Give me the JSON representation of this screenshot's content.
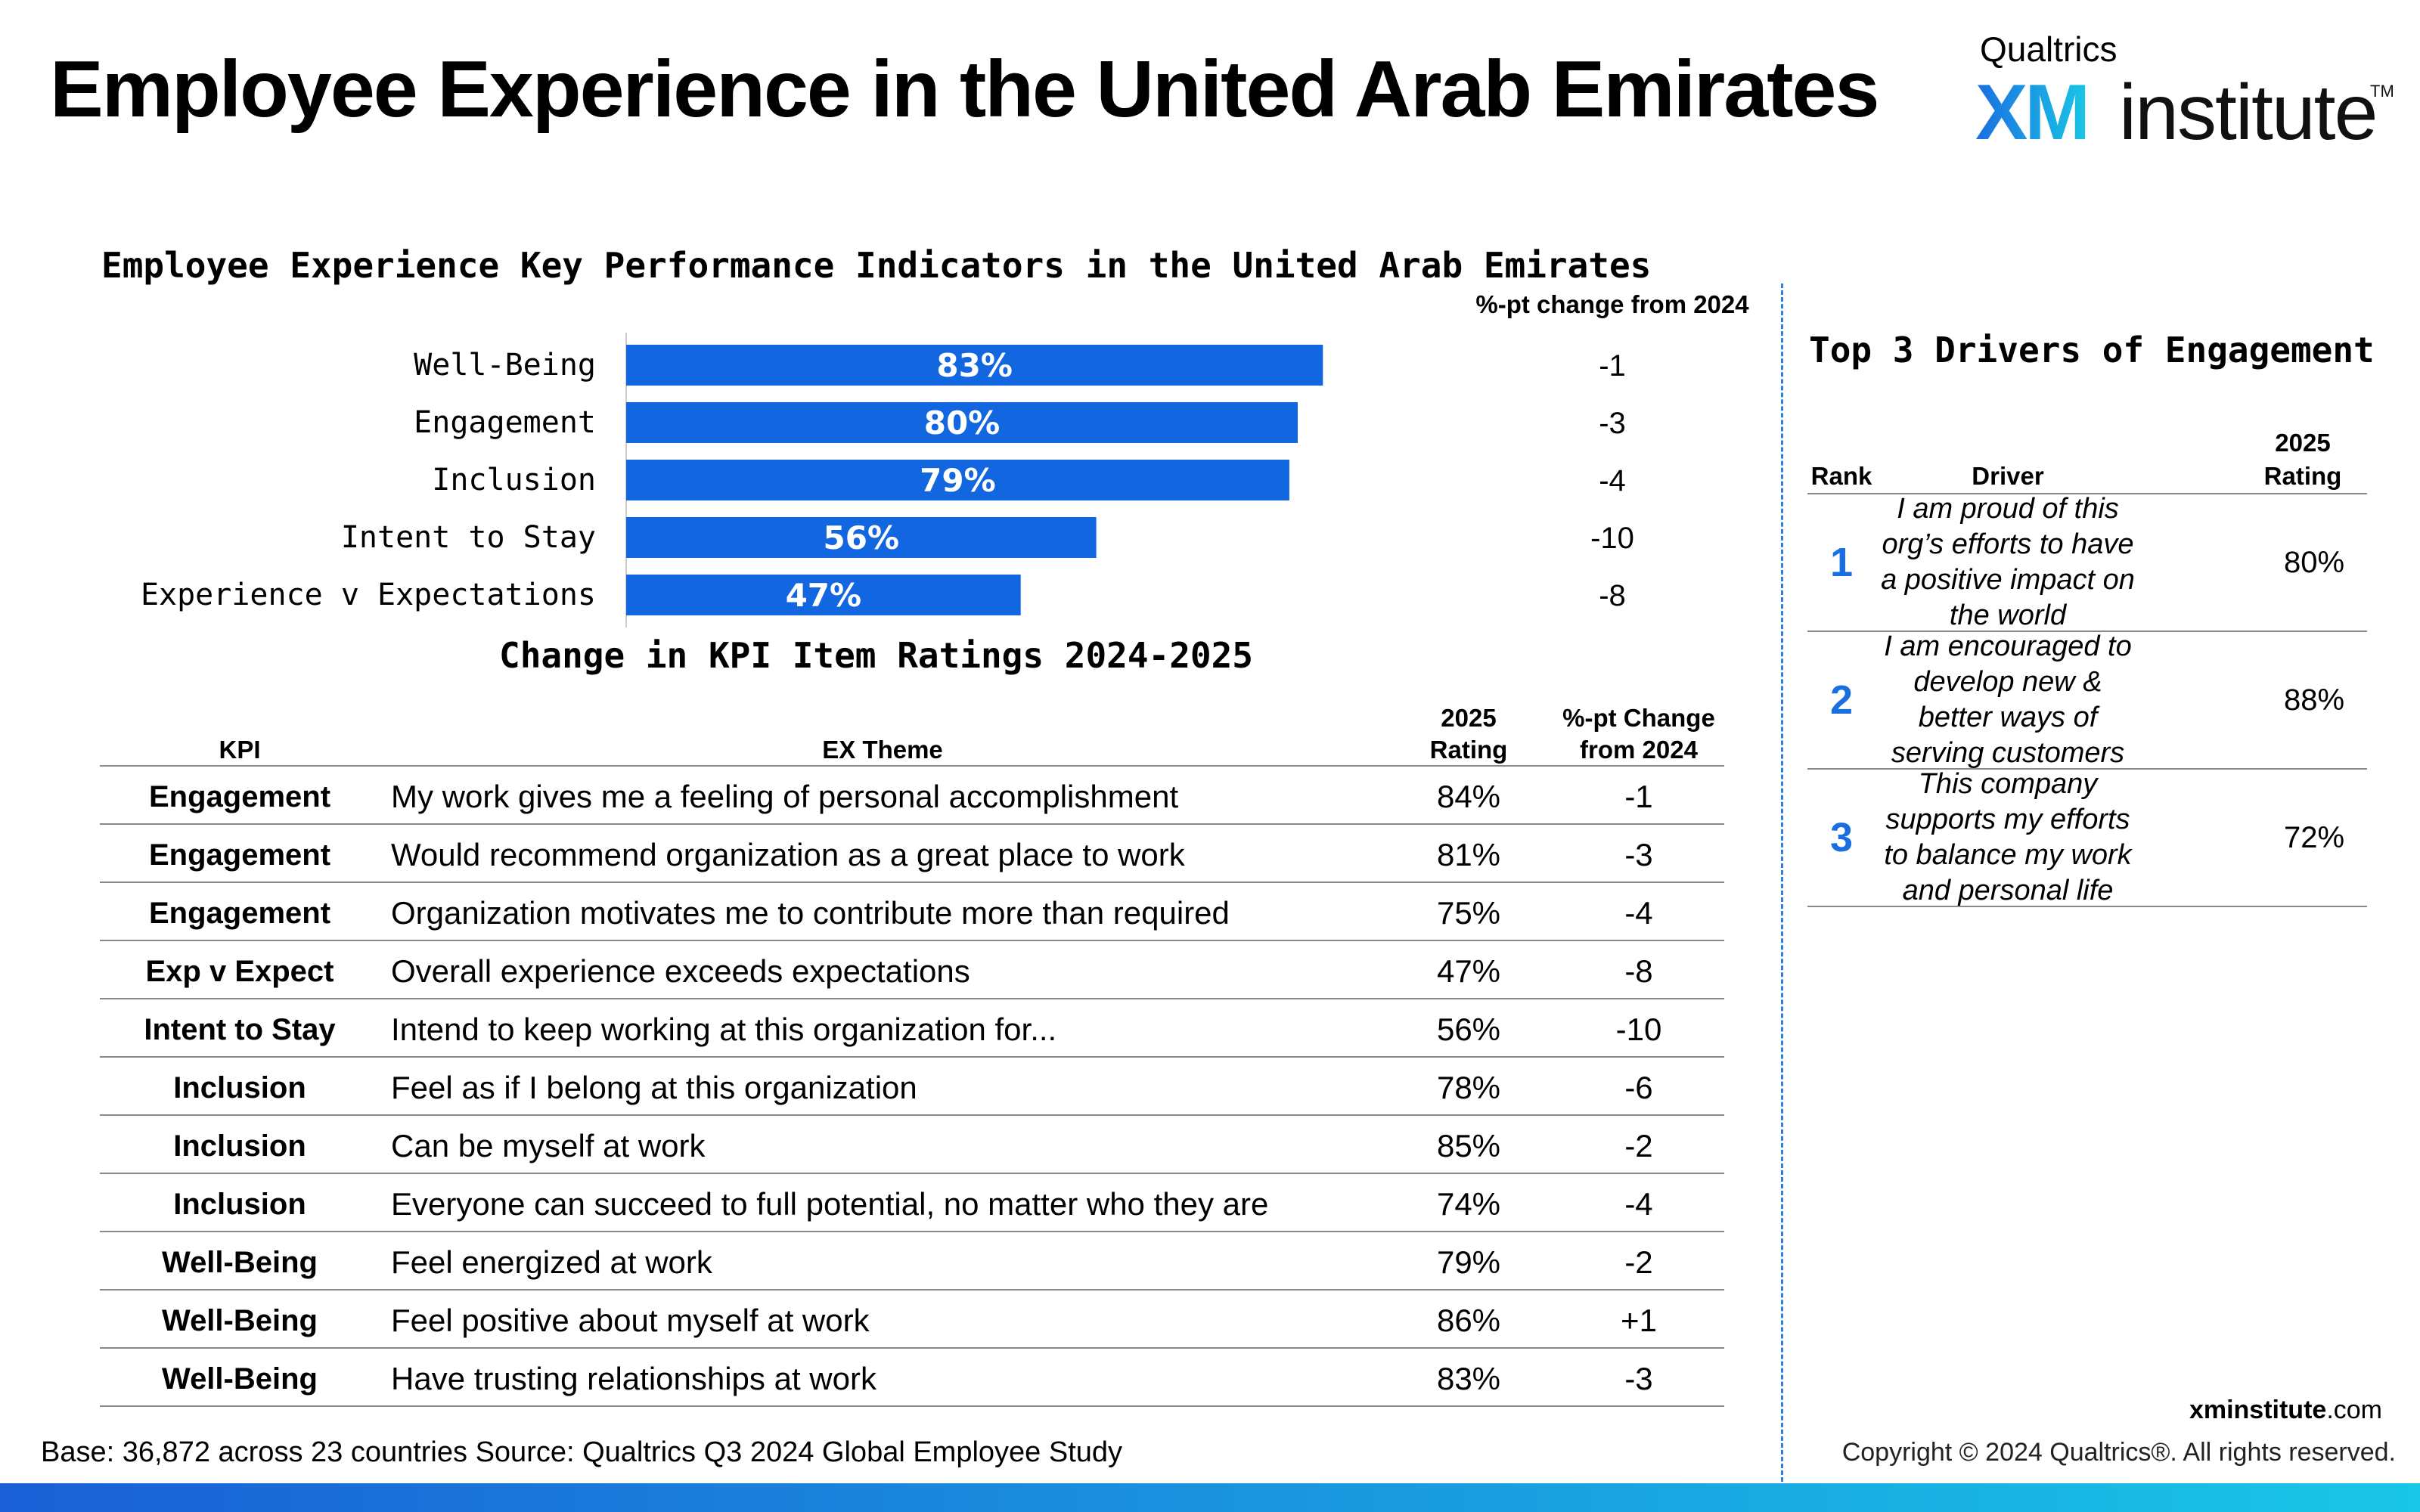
{
  "title": "Employee Experience in the United Arab Emirates",
  "logo": {
    "top_text": "Qualtrics",
    "xm_text": "XM",
    "institute_text": "institute",
    "tm_text": "TM"
  },
  "kpi_section": {
    "title": "Employee Experience Key Performance Indicators in the United Arab Emirates",
    "change_header": "%-pt change from 2024"
  },
  "chart_data": {
    "type": "bar",
    "orientation": "horizontal",
    "title": "Employee Experience Key Performance Indicators in the United Arab Emirates",
    "categories": [
      "Well-Being",
      "Engagement",
      "Inclusion",
      "Intent to Stay",
      "Experience v Expectations"
    ],
    "values": [
      83,
      80,
      79,
      56,
      47
    ],
    "value_labels": [
      "83%",
      "80%",
      "79%",
      "56%",
      "47%"
    ],
    "changes": [
      "-1",
      "-3",
      "-4",
      "-10",
      "-8"
    ],
    "xlim": [
      0,
      100
    ],
    "bar_color": "#1266e0",
    "grid": false
  },
  "change_section": {
    "title": "Change in KPI Item Ratings 2024-2025",
    "headers": {
      "kpi": "KPI",
      "theme": "EX Theme",
      "rating_1": "2025",
      "rating_2": "Rating",
      "change_1": "%-pt Change",
      "change_2": "from 2024"
    },
    "rows": [
      {
        "kpi": "Engagement",
        "theme": "My work gives me a feeling of personal accomplishment",
        "rating": "84%",
        "change": "-1"
      },
      {
        "kpi": "Engagement",
        "theme": "Would recommend organization as a great place to work",
        "rating": "81%",
        "change": "-3"
      },
      {
        "kpi": "Engagement",
        "theme": "Organization motivates me to contribute more than required",
        "rating": "75%",
        "change": "-4"
      },
      {
        "kpi": "Exp v Expect",
        "theme": "Overall experience exceeds expectations",
        "rating": "47%",
        "change": "-8"
      },
      {
        "kpi": "Intent to Stay",
        "theme": "Intend to keep working at this organization for...",
        "rating": "56%",
        "change": "-10"
      },
      {
        "kpi": "Inclusion",
        "theme": "Feel as if I belong at this organization",
        "rating": "78%",
        "change": "-6"
      },
      {
        "kpi": "Inclusion",
        "theme": "Can be myself at work",
        "rating": "85%",
        "change": "-2"
      },
      {
        "kpi": "Inclusion",
        "theme": "Everyone can succeed to full potential, no matter who they are",
        "rating": "74%",
        "change": "-4"
      },
      {
        "kpi": "Well-Being",
        "theme": "Feel energized at work",
        "rating": "79%",
        "change": "-2"
      },
      {
        "kpi": "Well-Being",
        "theme": "Feel positive about myself at work",
        "rating": "86%",
        "change": "+1"
      },
      {
        "kpi": "Well-Being",
        "theme": "Have trusting relationships at work",
        "rating": "83%",
        "change": "-3"
      }
    ]
  },
  "drivers": {
    "title": "Top 3 Drivers of Engagement",
    "headers": {
      "rank": "Rank",
      "driver": "Driver",
      "rating_1": "2025",
      "rating_2": "Rating"
    },
    "rows": [
      {
        "rank": "1",
        "driver": "I am proud of this org’s efforts to have a positive impact on the world",
        "rating": "80%"
      },
      {
        "rank": "2",
        "driver": "I am encouraged to develop new & better ways of serving customers",
        "rating": "88%"
      },
      {
        "rank": "3",
        "driver": "This company supports my efforts to balance my work and personal life",
        "rating": "72%"
      }
    ]
  },
  "footer": {
    "base_label": "Base:",
    "base_text": "36,872 across 23 countries",
    "source_label": "Source:",
    "source_text": "Qualtrics Q3 2024 Global Employee Study",
    "site_bold": "xminstitute",
    "site_rest": ".com",
    "copyright": "Copyright © 2024 Qualtrics®. All rights reserved."
  },
  "colors": {
    "accent": "#1266e0",
    "rank_blue": "#1a6fe0",
    "divider": "#2d7fe0"
  }
}
